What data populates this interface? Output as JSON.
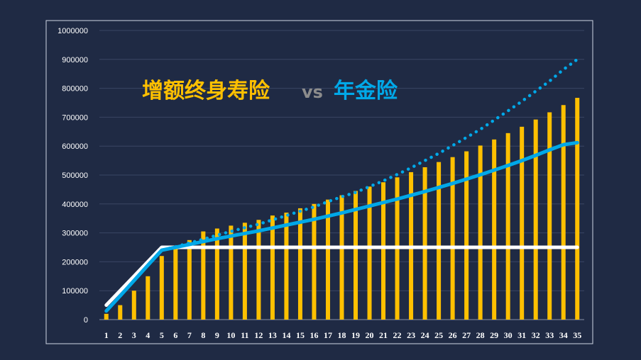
{
  "chart_data": {
    "type": "bar",
    "title": {
      "left": "增额终身寿险",
      "vs": "vs",
      "right": "年金险"
    },
    "xlabel": "",
    "ylabel": "",
    "ylim": [
      0,
      1000000
    ],
    "y_ticks": [
      "0",
      "100000",
      "200000",
      "300000",
      "400000",
      "500000",
      "600000",
      "700000",
      "800000",
      "900000",
      "1000000"
    ],
    "categories": [
      "1",
      "2",
      "3",
      "4",
      "5",
      "6",
      "7",
      "8",
      "9",
      "10",
      "11",
      "12",
      "13",
      "14",
      "15",
      "16",
      "17",
      "18",
      "19",
      "20",
      "21",
      "22",
      "23",
      "24",
      "25",
      "26",
      "27",
      "28",
      "29",
      "30",
      "31",
      "32",
      "33",
      "34",
      "35"
    ],
    "grid": true,
    "legend": "none",
    "series": [
      {
        "type": "bar",
        "color": "#ffc000",
        "values": [
          20000,
          50000,
          100000,
          150000,
          220000,
          255000,
          275000,
          305000,
          315000,
          325000,
          335000,
          345000,
          360000,
          370000,
          385000,
          400000,
          415000,
          430000,
          445000,
          460000,
          475000,
          492000,
          510000,
          527000,
          545000,
          562000,
          582000,
          602000,
          623000,
          645000,
          667000,
          692000,
          717000,
          742000,
          767000
        ]
      },
      {
        "type": "line",
        "style": "solid",
        "color": "#ffffff",
        "values": [
          50000,
          100000,
          150000,
          200000,
          250000,
          250000,
          250000,
          250000,
          250000,
          250000,
          250000,
          250000,
          250000,
          250000,
          250000,
          250000,
          250000,
          250000,
          250000,
          250000,
          250000,
          250000,
          250000,
          250000,
          250000,
          250000,
          250000,
          250000,
          250000,
          250000,
          250000,
          250000,
          250000,
          250000,
          250000
        ]
      },
      {
        "type": "line",
        "style": "solid",
        "color": "#00a8e8",
        "values": [
          30000,
          82000,
          135000,
          188000,
          240000,
          250000,
          260000,
          270000,
          280000,
          289000,
          298000,
          307000,
          317000,
          327000,
          337000,
          347000,
          358000,
          369000,
          381000,
          393000,
          405000,
          417000,
          430000,
          443000,
          457000,
          471000,
          486000,
          501000,
          517000,
          533000,
          550000,
          568000,
          587000,
          605000,
          612000
        ]
      },
      {
        "type": "line",
        "style": "dotted",
        "color": "#00a8e8",
        "values": [
          30000,
          82000,
          135000,
          188000,
          240000,
          252000,
          265000,
          278000,
          292000,
          305000,
          318000,
          330000,
          345000,
          360000,
          375000,
          390000,
          408000,
          425000,
          440000,
          460000,
          480000,
          502000,
          525000,
          550000,
          575000,
          602000,
          630000,
          658000,
          690000,
          722000,
          755000,
          790000,
          825000,
          865000,
          900000
        ]
      }
    ],
    "colors": {
      "background": "#1f2a44",
      "frame": "#cfd6e4",
      "gridline": "#3a4663",
      "title_left": "#ffc000",
      "title_vs": "#8c8c8c",
      "title_right": "#00a8e8"
    }
  }
}
